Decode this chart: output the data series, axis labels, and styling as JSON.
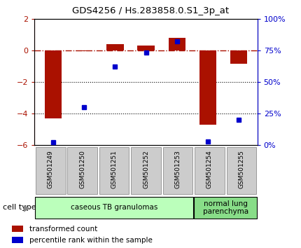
{
  "title": "GDS4256 / Hs.283858.0.S1_3p_at",
  "samples": [
    "GSM501249",
    "GSM501250",
    "GSM501251",
    "GSM501252",
    "GSM501253",
    "GSM501254",
    "GSM501255"
  ],
  "red_values": [
    -4.3,
    -0.05,
    0.38,
    0.28,
    0.78,
    -4.7,
    -0.85
  ],
  "blue_values_pct": [
    2,
    30,
    62,
    73,
    82,
    3,
    20
  ],
  "left_ylim": [
    -6,
    2
  ],
  "right_ylim": [
    0,
    100
  ],
  "left_yticks": [
    -6,
    -4,
    -2,
    0,
    2
  ],
  "right_yticks": [
    0,
    25,
    50,
    75,
    100
  ],
  "right_yticklabels": [
    "0%",
    "25%",
    "50%",
    "75%",
    "100%"
  ],
  "dotted_lines": [
    -2,
    -4
  ],
  "red_color": "#aa1100",
  "blue_color": "#0000cc",
  "bar_width": 0.55,
  "cell_types": [
    {
      "label": "caseous TB granulomas",
      "start": 0,
      "end": 5,
      "color": "#bbffbb"
    },
    {
      "label": "normal lung\nparenchyma",
      "start": 5,
      "end": 7,
      "color": "#88dd88"
    }
  ],
  "cell_type_label": "cell type",
  "legend_red": "transformed count",
  "legend_blue": "percentile rank within the sample",
  "box_color": "#cccccc",
  "box_edge": "#999999"
}
